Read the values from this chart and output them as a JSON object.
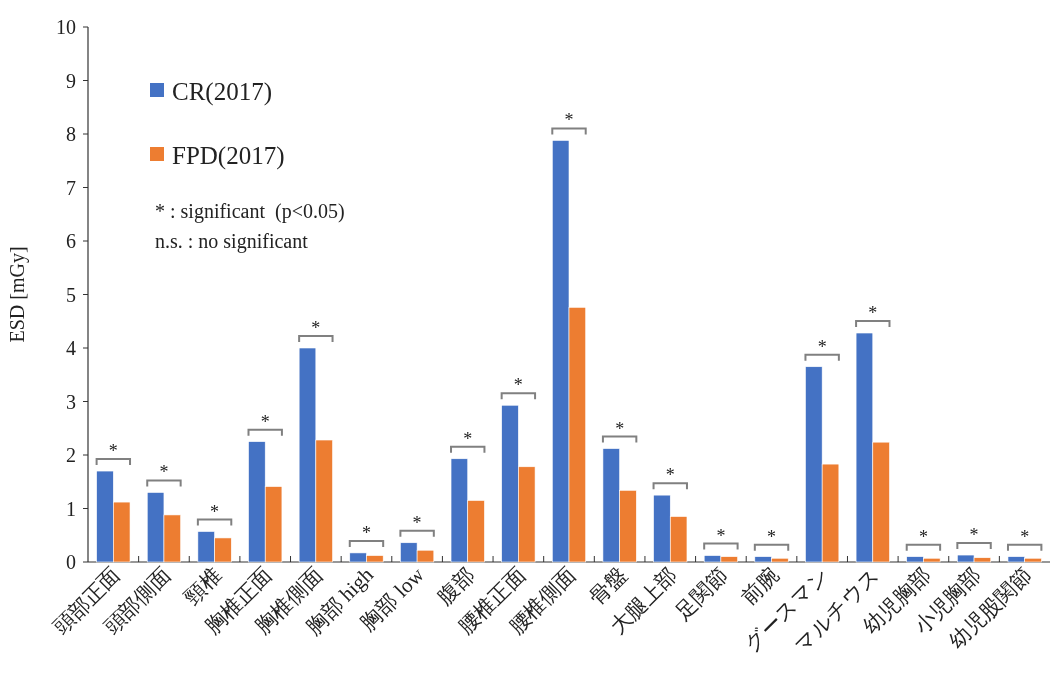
{
  "chart_data": {
    "type": "bar",
    "ylabel": "ESD [mGy]",
    "categories": [
      "頭部正面",
      "頭部側面",
      "頸椎",
      "胸椎正面",
      "胸椎側面",
      "胸部 high",
      "胸部 low",
      "腹部",
      "腰椎正面",
      "腰椎側面",
      "骨盤",
      "大腿上部",
      "足関節",
      "前腕",
      "グースマン",
      "マルチウス",
      "幼児胸部",
      "小児胸部",
      "幼児股関節"
    ],
    "series": [
      {
        "name": "CR(2017)",
        "color": "#4472c4",
        "values": [
          1.7,
          1.3,
          0.57,
          2.25,
          4.0,
          0.17,
          0.36,
          1.93,
          2.93,
          7.88,
          2.12,
          1.25,
          0.12,
          0.1,
          3.65,
          4.28,
          0.1,
          0.13,
          0.1
        ]
      },
      {
        "name": "FPD(2017)",
        "color": "#ed7d31",
        "values": [
          1.12,
          0.88,
          0.45,
          1.41,
          2.28,
          0.12,
          0.22,
          1.15,
          1.78,
          4.76,
          1.34,
          0.85,
          0.1,
          0.07,
          1.83,
          2.24,
          0.07,
          0.08,
          0.07
        ]
      }
    ],
    "ylim": [
      0,
      10
    ],
    "yticks": [
      0,
      1,
      2,
      3,
      4,
      5,
      6,
      7,
      8,
      9,
      10
    ],
    "legend": "top left",
    "annotations": [
      "* : significant  (p<0.05)",
      "n.s. : no significant",
      "*",
      "*",
      "*",
      "*",
      "*",
      "*",
      "*",
      "*",
      "*",
      "*",
      "*",
      "*",
      "*",
      "*",
      "*",
      "*",
      "*",
      "*",
      "*"
    ]
  }
}
